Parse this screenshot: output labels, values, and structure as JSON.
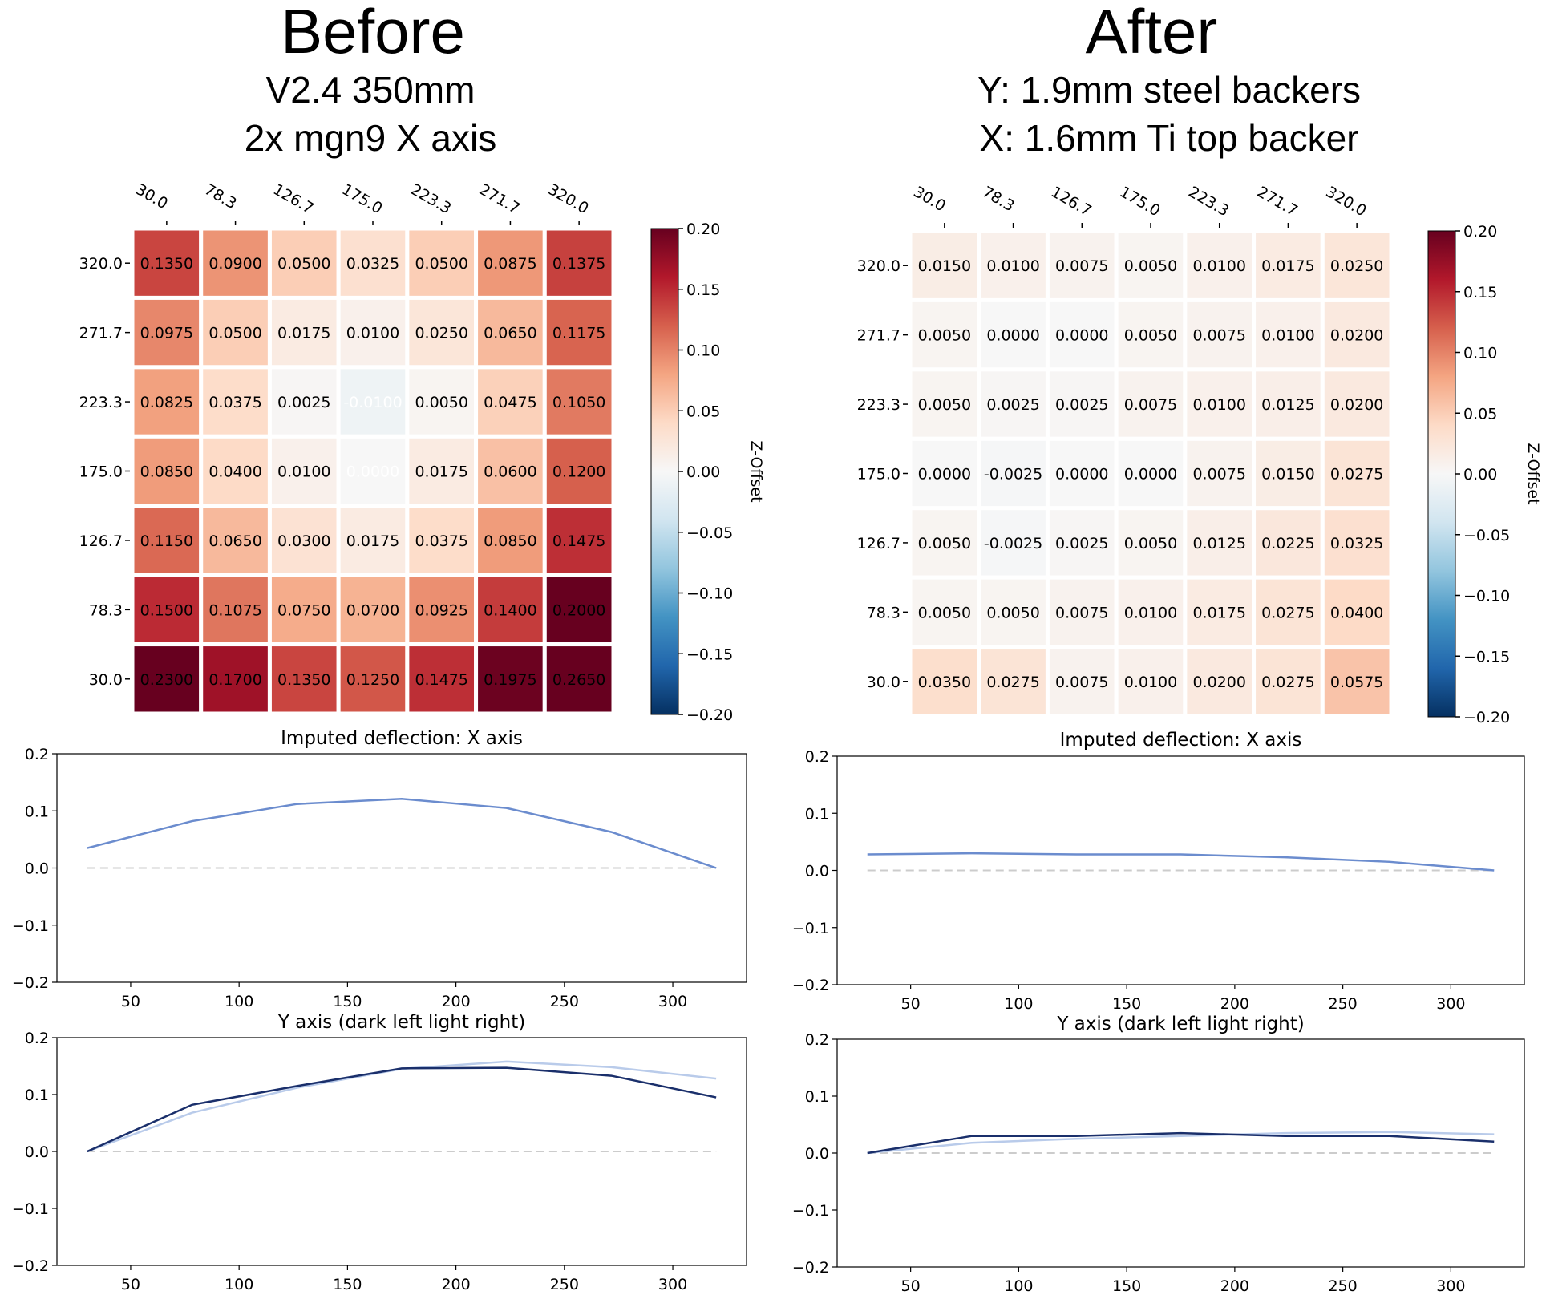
{
  "panels": [
    {
      "title": "Before",
      "subtitle_lines": [
        "V2.4 350mm",
        "2x mgn9 X axis"
      ]
    },
    {
      "title": "After",
      "subtitle_lines": [
        "Y: 1.9mm steel backers",
        "X: 1.6mm Ti top backer"
      ]
    }
  ],
  "chart_data": [
    {
      "type": "heatmap",
      "panel": "Before",
      "x_tick_labels": [
        "30.0",
        "78.3",
        "126.7",
        "175.0",
        "223.3",
        "271.7",
        "320.0"
      ],
      "y_tick_labels": [
        "320.0",
        "271.7",
        "223.3",
        "175.0",
        "126.7",
        "78.3",
        "30.0"
      ],
      "values": [
        [
          0.135,
          0.09,
          0.05,
          0.0325,
          0.05,
          0.0875,
          0.1375
        ],
        [
          0.0975,
          0.05,
          0.0175,
          0.01,
          0.025,
          0.065,
          0.1175
        ],
        [
          0.0825,
          0.0375,
          0.0025,
          -0.01,
          0.005,
          0.0475,
          0.105
        ],
        [
          0.085,
          0.04,
          0.01,
          0.0,
          0.0175,
          0.06,
          0.12
        ],
        [
          0.115,
          0.065,
          0.03,
          0.0175,
          0.0375,
          0.085,
          0.1475
        ],
        [
          0.15,
          0.1075,
          0.075,
          0.07,
          0.0925,
          0.14,
          0.2
        ],
        [
          0.23,
          0.17,
          0.135,
          0.125,
          0.1475,
          0.1975,
          0.265
        ]
      ],
      "colormap": "RdBu_r",
      "colorbar": {
        "label": "Z-Offset",
        "range": [
          -0.2,
          0.2
        ],
        "ticks": [
          "0.20",
          "0.15",
          "0.10",
          "0.05",
          "0.00",
          "−0.05",
          "−0.10",
          "−0.15",
          "−0.20"
        ]
      }
    },
    {
      "type": "heatmap",
      "panel": "After",
      "x_tick_labels": [
        "30.0",
        "78.3",
        "126.7",
        "175.0",
        "223.3",
        "271.7",
        "320.0"
      ],
      "y_tick_labels": [
        "320.0",
        "271.7",
        "223.3",
        "175.0",
        "126.7",
        "78.3",
        "30.0"
      ],
      "values": [
        [
          0.015,
          0.01,
          0.0075,
          0.005,
          0.01,
          0.0175,
          0.025
        ],
        [
          0.005,
          0.0,
          0.0,
          0.005,
          0.0075,
          0.01,
          0.02
        ],
        [
          0.005,
          0.0025,
          0.0025,
          0.0075,
          0.01,
          0.0125,
          0.02
        ],
        [
          0.0,
          -0.0025,
          0.0,
          0.0,
          0.0075,
          0.015,
          0.0275
        ],
        [
          0.005,
          -0.0025,
          0.0025,
          0.005,
          0.0125,
          0.0225,
          0.0325
        ],
        [
          0.005,
          0.005,
          0.0075,
          0.01,
          0.0175,
          0.0275,
          0.04
        ],
        [
          0.035,
          0.0275,
          0.0075,
          0.01,
          0.02,
          0.0275,
          0.0575
        ]
      ],
      "colormap": "RdBu_r",
      "colorbar": {
        "label": "Z-Offset",
        "range": [
          -0.2,
          0.2
        ],
        "ticks": [
          "0.20",
          "0.15",
          "0.10",
          "0.05",
          "0.00",
          "−0.05",
          "−0.10",
          "−0.15",
          "−0.20"
        ]
      }
    },
    {
      "type": "line",
      "panel": "Before",
      "title": "Imputed deflection: X axis",
      "x": [
        30.0,
        78.3,
        126.7,
        175.0,
        223.3,
        271.7,
        320.0
      ],
      "series": [
        {
          "values": [
            0.035,
            0.082,
            0.112,
            0.121,
            0.105,
            0.063,
            0.0
          ],
          "color": "#6b8cce"
        }
      ],
      "baseline": 0.0,
      "xlim": [
        16,
        334
      ],
      "ylim": [
        -0.2,
        0.2
      ],
      "x_ticks": [
        "50",
        "100",
        "150",
        "200",
        "250",
        "300"
      ],
      "y_ticks": [
        "0.2",
        "0.1",
        "0.0",
        "−0.1",
        "−0.2"
      ]
    },
    {
      "type": "line",
      "panel": "Before",
      "title": "Y axis (dark left light right)",
      "x": [
        30.0,
        78.3,
        126.7,
        175.0,
        223.3,
        271.7,
        320.0
      ],
      "series": [
        {
          "values": [
            0.0,
            0.068,
            0.112,
            0.145,
            0.158,
            0.148,
            0.128
          ],
          "color": "#b9cbea"
        },
        {
          "values": [
            0.0,
            0.082,
            0.115,
            0.146,
            0.147,
            0.133,
            0.095
          ],
          "color": "#1a2f6b"
        }
      ],
      "baseline": 0.0,
      "xlim": [
        16,
        334
      ],
      "ylim": [
        -0.2,
        0.2
      ],
      "x_ticks": [
        "50",
        "100",
        "150",
        "200",
        "250",
        "300"
      ],
      "y_ticks": [
        "0.2",
        "0.1",
        "0.0",
        "−0.1",
        "−0.2"
      ]
    },
    {
      "type": "line",
      "panel": "After",
      "title": "Imputed deflection: X axis",
      "x": [
        30.0,
        78.3,
        126.7,
        175.0,
        223.3,
        271.7,
        320.0
      ],
      "series": [
        {
          "values": [
            0.028,
            0.03,
            0.028,
            0.028,
            0.023,
            0.015,
            0.0
          ],
          "color": "#6b8cce"
        }
      ],
      "baseline": 0.0,
      "xlim": [
        16,
        334
      ],
      "ylim": [
        -0.2,
        0.2
      ],
      "x_ticks": [
        "50",
        "100",
        "150",
        "200",
        "250",
        "300"
      ],
      "y_ticks": [
        "0.2",
        "0.1",
        "0.0",
        "−0.1",
        "−0.2"
      ]
    },
    {
      "type": "line",
      "panel": "After",
      "title": "Y axis (dark left light right)",
      "x": [
        30.0,
        78.3,
        126.7,
        175.0,
        223.3,
        271.7,
        320.0
      ],
      "series": [
        {
          "values": [
            0.0,
            0.018,
            0.025,
            0.03,
            0.035,
            0.037,
            0.033
          ],
          "color": "#b9cbea"
        },
        {
          "values": [
            0.0,
            0.03,
            0.03,
            0.035,
            0.03,
            0.03,
            0.02
          ],
          "color": "#1a2f6b"
        }
      ],
      "baseline": 0.0,
      "xlim": [
        16,
        334
      ],
      "ylim": [
        -0.2,
        0.2
      ],
      "x_ticks": [
        "50",
        "100",
        "150",
        "200",
        "250",
        "300"
      ],
      "y_ticks": [
        "0.2",
        "0.1",
        "0.0",
        "−0.1",
        "−0.2"
      ]
    }
  ]
}
